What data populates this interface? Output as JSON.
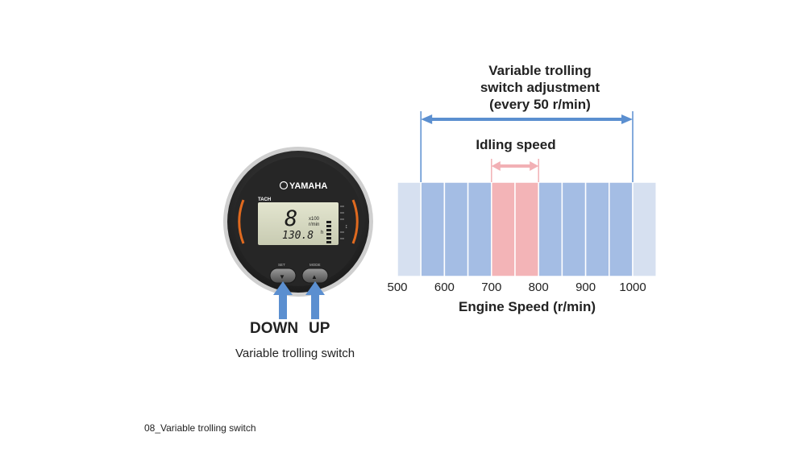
{
  "diagram": {
    "title_lines": [
      "Variable trolling",
      "switch adjustment",
      "(every 50 r/min)"
    ],
    "idling_label": "Idling speed",
    "axis_label": "Engine Speed (r/min)",
    "tick_labels": [
      "500",
      "600",
      "700",
      "800",
      "900",
      "1000"
    ],
    "band_start": 500,
    "band_step": 50,
    "adjust_range": [
      550,
      1000
    ],
    "idle_range": [
      700,
      800
    ],
    "colors": {
      "outer_band": "#d6e0f0",
      "adjust_band": "#a4bde4",
      "idle_band": "#f3b4b7",
      "adjust_arrow": "#5b8fd0",
      "idle_arrow": "#f2b0b5",
      "switch_arrow": "#5b8fd0"
    }
  },
  "gauge": {
    "brand": "YAMAHA",
    "label_tach": "TACH",
    "digit": "8",
    "unit_x100": "x100",
    "unit_rmin": "r/min",
    "hours_value": "130.8",
    "hours_unit": "h",
    "set_label": "SET",
    "mode_label": "MODE",
    "down_symbol": "▼",
    "up_symbol": "▲"
  },
  "captions": {
    "down": "DOWN",
    "up": "UP",
    "switch": "Variable trolling switch",
    "footer": "08_Variable trolling switch"
  }
}
